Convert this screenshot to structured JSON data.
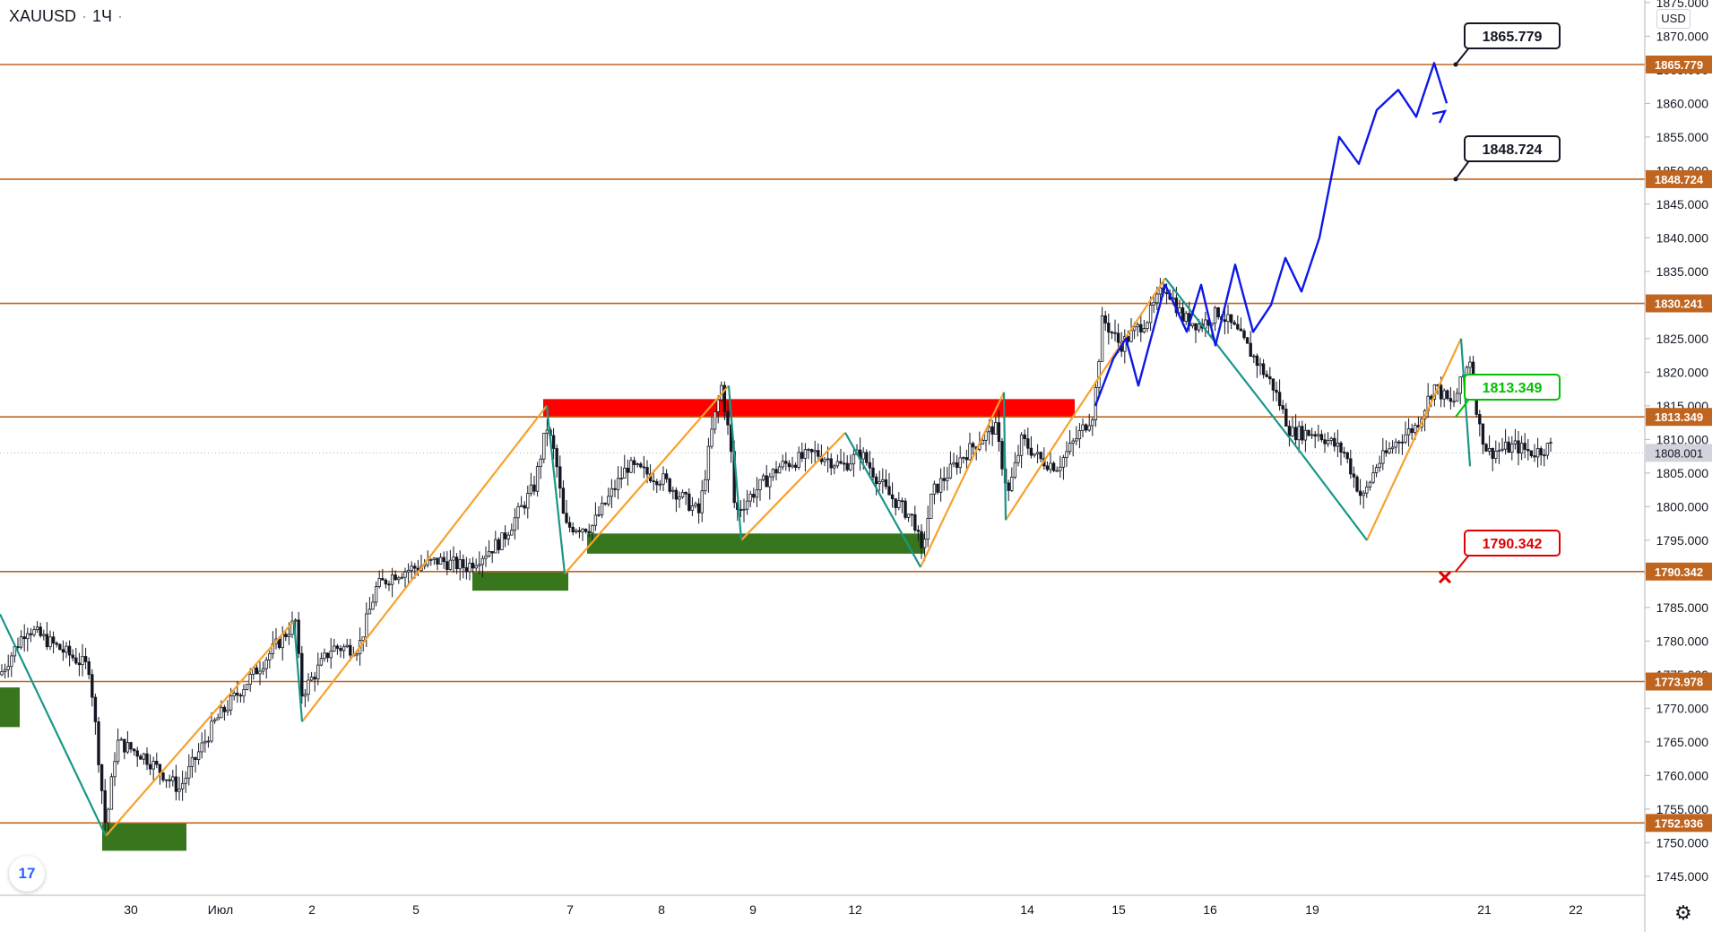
{
  "symbol": {
    "name": "XAUUSD",
    "interval": "1Ч"
  },
  "currency": "USD",
  "logo_icon": "tradingview-logo-icon",
  "settings_icon": "gear-icon",
  "chart_data": {
    "type": "candlestick",
    "y_axis": {
      "ylim": [
        1743.5,
        1876.0
      ],
      "ticks": [
        1745,
        1750,
        1755,
        1760,
        1765,
        1770,
        1775,
        1780,
        1785,
        1790,
        1795,
        1800,
        1805,
        1810,
        1815,
        1820,
        1825,
        1830,
        1835,
        1840,
        1845,
        1850,
        1855,
        1860,
        1865,
        1870,
        1875
      ]
    },
    "x_axis": {
      "labels": [
        "30",
        "Июл",
        "2",
        "5",
        "7",
        "8",
        "9",
        "12",
        "14",
        "15",
        "16",
        "19",
        "21",
        "22"
      ]
    },
    "last_price": 1808.001,
    "levels": [
      {
        "price": 1865.779,
        "label": "1865.779"
      },
      {
        "price": 1848.724,
        "label": "1848.724"
      },
      {
        "price": 1830.241,
        "label": "1830.241"
      },
      {
        "price": 1813.349,
        "label": "1813.349"
      },
      {
        "price": 1790.342,
        "label": "1790.342"
      },
      {
        "price": 1773.978,
        "label": "1773.978"
      },
      {
        "price": 1752.936,
        "label": "1752.936"
      }
    ],
    "callouts": [
      {
        "text": "1865.779",
        "price": 1865.779,
        "style": "target"
      },
      {
        "text": "1848.724",
        "price": 1848.724,
        "style": "target"
      },
      {
        "text": "1813.349",
        "price": 1813.349,
        "style": "entry"
      },
      {
        "text": "1790.342",
        "price": 1790.342,
        "style": "stop"
      }
    ],
    "zones": [
      {
        "type": "resistance",
        "top": 1816.0,
        "bottom": 1813.3
      },
      {
        "type": "support",
        "top": 1796.0,
        "bottom": 1793.0
      },
      {
        "type": "support",
        "top": 1790.3,
        "bottom": 1787.5
      },
      {
        "type": "support",
        "top": 1773.1,
        "bottom": 1767.2
      },
      {
        "type": "support",
        "top": 1753.0,
        "bottom": 1748.8
      }
    ],
    "colors": {
      "level": "#c0651f",
      "resistance_zone": "#ff0000",
      "support_zone": "#38761d",
      "up_wave": "#f7a12c",
      "down_wave": "#199688",
      "forecast": "#0d18e8",
      "entry": "#00c000",
      "stop": "#e00000",
      "candle": "#131722",
      "last_price_tag": "#9598a1"
    }
  }
}
